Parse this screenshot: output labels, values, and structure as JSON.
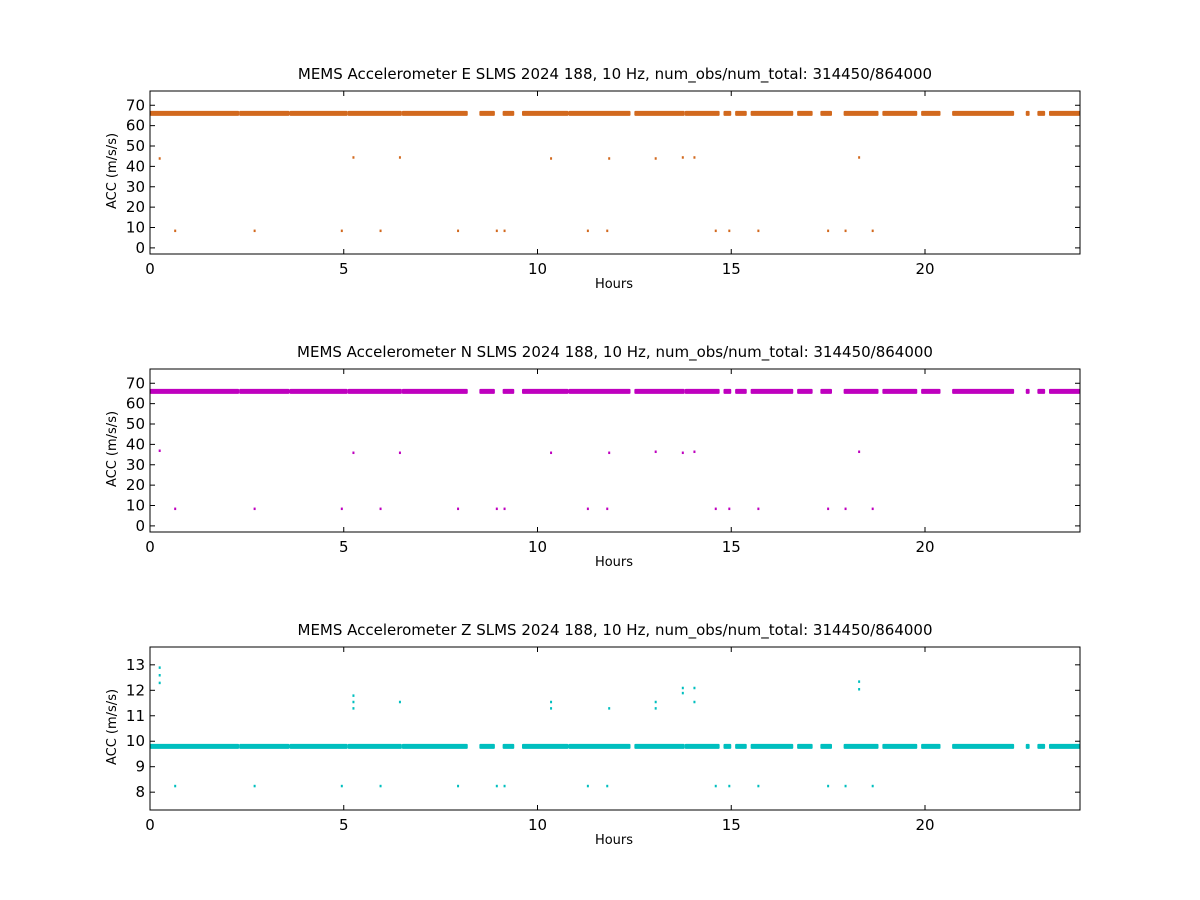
{
  "chart_data": [
    {
      "type": "scatter",
      "title": "MEMS Accelerometer E SLMS 2024 188, 10 Hz, num_obs/num_total: 314450/864000",
      "xlabel": "Hours",
      "ylabel": "ACC (m/s/s)",
      "xlim": [
        0,
        24
      ],
      "ylim": [
        -3,
        77
      ],
      "xticks": [
        0,
        5,
        10,
        15,
        20
      ],
      "yticks": [
        0,
        10,
        20,
        30,
        40,
        50,
        60,
        70
      ],
      "color": "#d2691e",
      "grid": false,
      "series": [
        {
          "baseline_value": 66,
          "coverage_segments": [
            [
              0,
              2.3
            ],
            [
              2.3,
              3.6
            ],
            [
              3.6,
              5.1
            ],
            [
              5.1,
              6.5
            ],
            [
              6.5,
              8.2
            ],
            [
              8.5,
              8.9
            ],
            [
              9.1,
              9.4
            ],
            [
              9.6,
              10.8
            ],
            [
              10.8,
              12.4
            ],
            [
              12.5,
              13.8
            ],
            [
              13.8,
              14.7
            ],
            [
              14.8,
              15.0
            ],
            [
              15.1,
              15.4
            ],
            [
              15.5,
              16.6
            ],
            [
              16.7,
              17.1
            ],
            [
              17.3,
              17.6
            ],
            [
              17.9,
              18.8
            ],
            [
              18.9,
              19.8
            ],
            [
              19.9,
              20.4
            ],
            [
              20.7,
              22.3
            ],
            [
              22.6,
              22.7
            ],
            [
              22.9,
              23.1
            ],
            [
              23.2,
              24.0
            ]
          ],
          "outliers": [
            [
              0.25,
              44
            ],
            [
              0.65,
              8.5
            ],
            [
              2.7,
              8.5
            ],
            [
              4.95,
              8.5
            ],
            [
              5.25,
              44.5
            ],
            [
              5.95,
              8.5
            ],
            [
              6.45,
              44.5
            ],
            [
              7.95,
              8.5
            ],
            [
              8.95,
              8.5
            ],
            [
              9.15,
              8.5
            ],
            [
              10.35,
              44
            ],
            [
              11.3,
              8.5
            ],
            [
              11.8,
              8.5
            ],
            [
              11.85,
              44
            ],
            [
              13.05,
              44
            ],
            [
              13.75,
              44.5
            ],
            [
              14.05,
              44.5
            ],
            [
              14.6,
              8.5
            ],
            [
              14.95,
              8.5
            ],
            [
              15.7,
              8.5
            ],
            [
              17.5,
              8.5
            ],
            [
              17.95,
              8.5
            ],
            [
              18.3,
              44.5
            ],
            [
              18.65,
              8.5
            ]
          ]
        }
      ]
    },
    {
      "type": "scatter",
      "title": "MEMS Accelerometer N SLMS 2024 188, 10 Hz, num_obs/num_total: 314450/864000",
      "xlabel": "Hours",
      "ylabel": "ACC (m/s/s)",
      "xlim": [
        0,
        24
      ],
      "ylim": [
        -3,
        77
      ],
      "xticks": [
        0,
        5,
        10,
        15,
        20
      ],
      "yticks": [
        0,
        10,
        20,
        30,
        40,
        50,
        60,
        70
      ],
      "color": "#bf00bf",
      "grid": false,
      "series": [
        {
          "baseline_value": 66,
          "coverage_segments": [
            [
              0,
              2.3
            ],
            [
              2.3,
              3.6
            ],
            [
              3.6,
              5.1
            ],
            [
              5.1,
              6.5
            ],
            [
              6.5,
              8.2
            ],
            [
              8.5,
              8.9
            ],
            [
              9.1,
              9.4
            ],
            [
              9.6,
              10.8
            ],
            [
              10.8,
              12.4
            ],
            [
              12.5,
              13.8
            ],
            [
              13.8,
              14.7
            ],
            [
              14.8,
              15.0
            ],
            [
              15.1,
              15.4
            ],
            [
              15.5,
              16.6
            ],
            [
              16.7,
              17.1
            ],
            [
              17.3,
              17.6
            ],
            [
              17.9,
              18.8
            ],
            [
              18.9,
              19.8
            ],
            [
              19.9,
              20.4
            ],
            [
              20.7,
              22.3
            ],
            [
              22.6,
              22.7
            ],
            [
              22.9,
              23.1
            ],
            [
              23.2,
              24.0
            ]
          ],
          "outliers": [
            [
              0.25,
              37
            ],
            [
              0.65,
              8.5
            ],
            [
              2.7,
              8.5
            ],
            [
              4.95,
              8.5
            ],
            [
              5.25,
              36
            ],
            [
              5.95,
              8.5
            ],
            [
              6.45,
              36
            ],
            [
              7.95,
              8.5
            ],
            [
              8.95,
              8.5
            ],
            [
              9.15,
              8.5
            ],
            [
              10.35,
              36
            ],
            [
              11.3,
              8.5
            ],
            [
              11.8,
              8.5
            ],
            [
              11.85,
              36
            ],
            [
              13.05,
              36.5
            ],
            [
              13.75,
              36
            ],
            [
              14.05,
              36.5
            ],
            [
              14.6,
              8.5
            ],
            [
              14.95,
              8.5
            ],
            [
              15.7,
              8.5
            ],
            [
              17.5,
              8.5
            ],
            [
              17.95,
              8.5
            ],
            [
              18.3,
              36.5
            ],
            [
              18.65,
              8.5
            ]
          ]
        }
      ]
    },
    {
      "type": "scatter",
      "title": "MEMS Accelerometer Z SLMS 2024 188, 10 Hz, num_obs/num_total: 314450/864000",
      "xlabel": "Hours",
      "ylabel": "ACC (m/s/s)",
      "xlim": [
        0,
        24
      ],
      "ylim": [
        7.3,
        13.7
      ],
      "xticks": [
        0,
        5,
        10,
        15,
        20
      ],
      "yticks": [
        8,
        9,
        10,
        11,
        12,
        13
      ],
      "color": "#00bfbf",
      "grid": false,
      "series": [
        {
          "baseline_value": 9.8,
          "coverage_segments": [
            [
              0,
              2.3
            ],
            [
              2.3,
              3.6
            ],
            [
              3.6,
              5.1
            ],
            [
              5.1,
              6.5
            ],
            [
              6.5,
              8.2
            ],
            [
              8.5,
              8.9
            ],
            [
              9.1,
              9.4
            ],
            [
              9.6,
              10.8
            ],
            [
              10.8,
              12.4
            ],
            [
              12.5,
              13.8
            ],
            [
              13.8,
              14.7
            ],
            [
              14.8,
              15.0
            ],
            [
              15.1,
              15.4
            ],
            [
              15.5,
              16.6
            ],
            [
              16.7,
              17.1
            ],
            [
              17.3,
              17.6
            ],
            [
              17.9,
              18.8
            ],
            [
              18.9,
              19.8
            ],
            [
              19.9,
              20.4
            ],
            [
              20.7,
              22.3
            ],
            [
              22.6,
              22.7
            ],
            [
              22.9,
              23.1
            ],
            [
              23.2,
              24.0
            ]
          ],
          "outliers": [
            [
              0.25,
              12.9
            ],
            [
              0.25,
              12.6
            ],
            [
              0.25,
              12.3
            ],
            [
              0.65,
              8.25
            ],
            [
              2.7,
              8.25
            ],
            [
              4.95,
              8.25
            ],
            [
              5.25,
              11.8
            ],
            [
              5.25,
              11.55
            ],
            [
              5.25,
              11.3
            ],
            [
              5.95,
              8.25
            ],
            [
              6.45,
              11.55
            ],
            [
              7.95,
              8.25
            ],
            [
              8.95,
              8.25
            ],
            [
              9.15,
              8.25
            ],
            [
              10.35,
              11.55
            ],
            [
              10.35,
              11.3
            ],
            [
              11.3,
              8.25
            ],
            [
              11.8,
              8.25
            ],
            [
              11.85,
              11.3
            ],
            [
              13.05,
              11.55
            ],
            [
              13.05,
              11.3
            ],
            [
              13.75,
              12.1
            ],
            [
              13.75,
              11.9
            ],
            [
              14.05,
              12.1
            ],
            [
              14.05,
              11.55
            ],
            [
              14.6,
              8.25
            ],
            [
              14.95,
              8.25
            ],
            [
              15.7,
              8.25
            ],
            [
              17.5,
              8.25
            ],
            [
              17.95,
              8.25
            ],
            [
              18.3,
              12.35
            ],
            [
              18.3,
              12.05
            ],
            [
              18.65,
              8.25
            ]
          ]
        }
      ]
    }
  ]
}
